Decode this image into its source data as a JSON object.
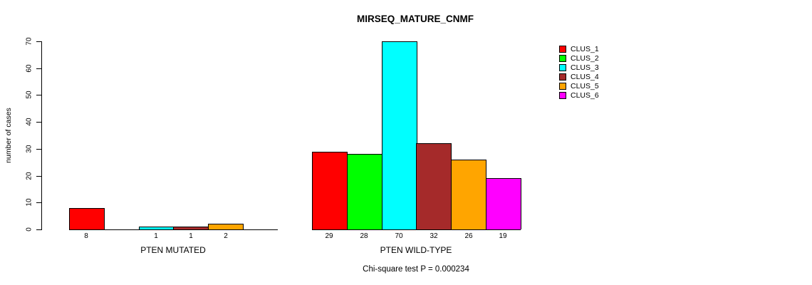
{
  "chart_data": {
    "type": "bar",
    "title": "MIRSEQ_MATURE_CNMF",
    "xlabel": "",
    "ylabel": "number of cases",
    "ylim": [
      0,
      70
    ],
    "yticks": [
      0,
      10,
      20,
      30,
      40,
      50,
      60,
      70
    ],
    "grid": false,
    "legend_position": "right",
    "categories": [
      "PTEN MUTATED",
      "PTEN WILD-TYPE"
    ],
    "series": [
      {
        "name": "CLUS_1",
        "color": "#FF0000",
        "values": [
          8,
          29
        ]
      },
      {
        "name": "CLUS_2",
        "color": "#00FF00",
        "values": [
          0,
          28
        ]
      },
      {
        "name": "CLUS_3",
        "color": "#00FFFF",
        "values": [
          1,
          70
        ]
      },
      {
        "name": "CLUS_4",
        "color": "#A52A2A",
        "values": [
          1,
          32
        ]
      },
      {
        "name": "CLUS_5",
        "color": "#FFA500",
        "values": [
          2,
          26
        ]
      },
      {
        "name": "CLUS_6",
        "color": "#FF00FF",
        "values": [
          0,
          19
        ]
      }
    ],
    "groups": [
      {
        "label": "PTEN MUTATED",
        "values": [
          8,
          0,
          1,
          1,
          2,
          0
        ],
        "bar_labels": [
          "8",
          "",
          "1",
          "1",
          "2",
          ""
        ]
      },
      {
        "label": "PTEN WILD-TYPE",
        "values": [
          29,
          28,
          70,
          32,
          26,
          19
        ],
        "bar_labels": [
          "29",
          "28",
          "70",
          "32",
          "26",
          "19"
        ]
      }
    ],
    "annotation": "Chi-square test P = 0.000234"
  }
}
